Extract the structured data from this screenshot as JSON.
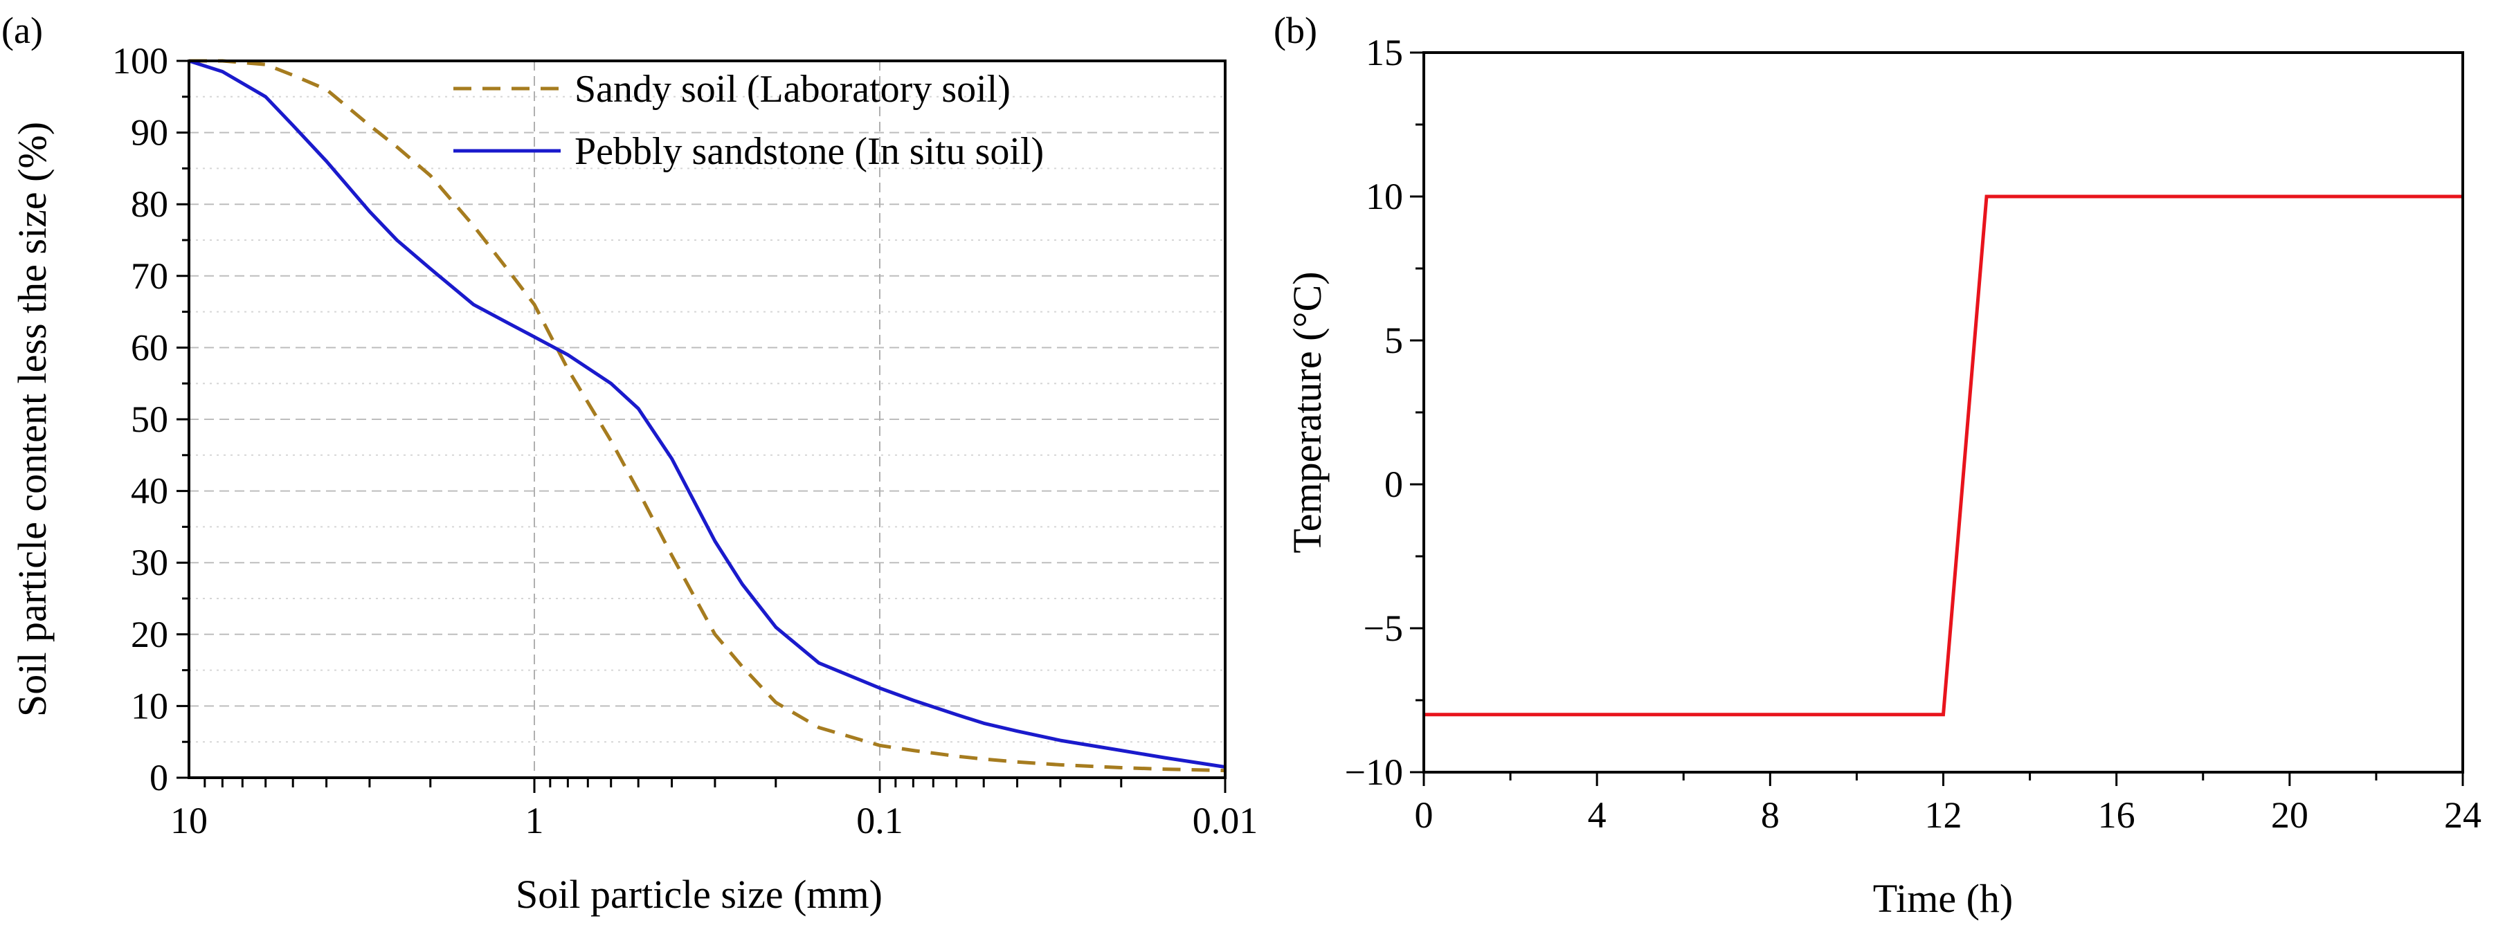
{
  "chart_data": [
    {
      "panel_label": "(a)",
      "type": "line",
      "xscale": "log",
      "x_reversed": true,
      "xlim": [
        10,
        0.01
      ],
      "ylim": [
        0,
        100
      ],
      "xlabel": "Soil particle size (mm)",
      "ylabel": "Soil particle content less the size (%)",
      "xticks": [
        10,
        1,
        0.1,
        0.01
      ],
      "xtick_labels": [
        "10",
        "1",
        "0.1",
        "0.01"
      ],
      "yticks": [
        0,
        10,
        20,
        30,
        40,
        50,
        60,
        70,
        80,
        90,
        100
      ],
      "ytick_labels": [
        "0",
        "10",
        "20",
        "30",
        "40",
        "50",
        "60",
        "70",
        "80",
        "90",
        "100"
      ],
      "grid": true,
      "legend_position": "top-right",
      "series": [
        {
          "name": "Sandy soil (Laboratory soil)",
          "color": "#a67c1f",
          "style": "dashed",
          "x": [
            10,
            8,
            6,
            5,
            4,
            3,
            2.5,
            2,
            1.5,
            1.2,
            1,
            0.8,
            0.6,
            0.5,
            0.4,
            0.3,
            0.25,
            0.2,
            0.15,
            0.1,
            0.08,
            0.06,
            0.05,
            0.04,
            0.03,
            0.02,
            0.015,
            0.01
          ],
          "y": [
            100,
            100,
            99.5,
            98,
            96,
            91,
            88,
            84,
            77,
            71,
            66,
            57,
            47,
            40,
            31,
            20,
            15.5,
            10.5,
            7,
            4.5,
            3.8,
            3,
            2.6,
            2.2,
            1.8,
            1.4,
            1.2,
            1
          ]
        },
        {
          "name": "Pebbly sandstone (In situ soil)",
          "color": "#1a1acc",
          "style": "solid",
          "x": [
            10,
            8,
            6,
            5,
            4,
            3,
            2.5,
            2,
            1.5,
            1.2,
            1,
            0.8,
            0.6,
            0.5,
            0.4,
            0.3,
            0.25,
            0.2,
            0.15,
            0.1,
            0.08,
            0.06,
            0.05,
            0.04,
            0.03,
            0.02,
            0.015,
            0.01
          ],
          "y": [
            100,
            98.5,
            95,
            91,
            86,
            79,
            75,
            71,
            66,
            63.5,
            61.5,
            59,
            55,
            51.5,
            44.5,
            33,
            27,
            21,
            16,
            12.5,
            10.8,
            8.8,
            7.6,
            6.5,
            5.2,
            3.8,
            2.8,
            1.5
          ]
        }
      ]
    },
    {
      "panel_label": "(b)",
      "type": "line",
      "xlim": [
        0,
        24
      ],
      "ylim": [
        -10,
        15
      ],
      "xlabel": "Time (h)",
      "ylabel": "Temperature (°C)",
      "xticks": [
        0,
        4,
        8,
        12,
        16,
        20,
        24
      ],
      "xtick_labels": [
        "0",
        "4",
        "8",
        "12",
        "16",
        "20",
        "24"
      ],
      "yticks": [
        -10,
        -5,
        0,
        5,
        10,
        15
      ],
      "ytick_labels": [
        "−10",
        "−5",
        "0",
        "5",
        "10",
        "15"
      ],
      "grid": false,
      "series": [
        {
          "name": "Temperature",
          "color": "#e8141c",
          "style": "solid",
          "x": [
            0,
            12,
            13,
            24
          ],
          "y": [
            -8,
            -8,
            10,
            10
          ]
        }
      ]
    }
  ]
}
